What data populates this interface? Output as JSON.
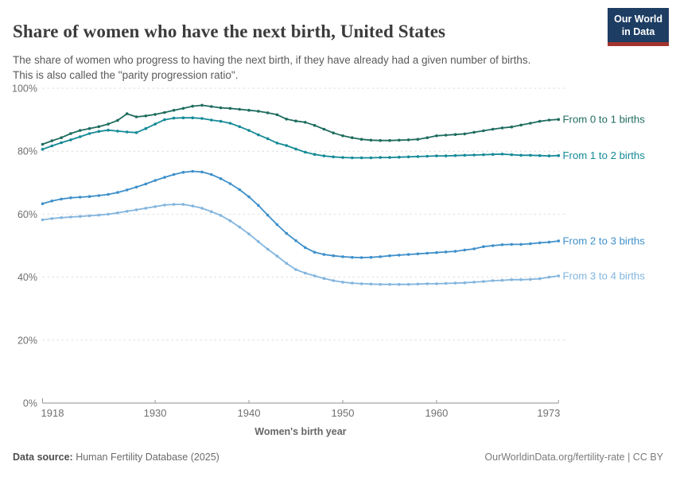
{
  "header": {
    "title": "Share of women who have the next birth, United States",
    "subtitle_lines": [
      "The share of women who progress to having the next birth, if they have already had a given number of births.",
      "This is also called the \"parity progression ratio\"."
    ]
  },
  "logo": {
    "line1": "Our World",
    "line2": "in Data",
    "bg_color": "#1d3d63",
    "bar_color": "#a3332e"
  },
  "chart_data": {
    "type": "line",
    "title": "Share of women who have the next birth, United States",
    "xlabel": "Women's birth year",
    "ylabel": "",
    "grid": true,
    "legend_position": "right-end-labels",
    "xlim": [
      1918,
      1973
    ],
    "ylim": [
      0,
      100
    ],
    "x_ticks": [
      1918,
      1930,
      1940,
      1950,
      1960,
      1973
    ],
    "y_ticks": [
      0,
      20,
      40,
      60,
      80,
      100
    ],
    "y_tick_suffix": "%",
    "x": [
      1918,
      1919,
      1920,
      1921,
      1922,
      1923,
      1924,
      1925,
      1926,
      1927,
      1928,
      1929,
      1930,
      1931,
      1932,
      1933,
      1934,
      1935,
      1936,
      1937,
      1938,
      1939,
      1940,
      1941,
      1942,
      1943,
      1944,
      1945,
      1946,
      1947,
      1948,
      1949,
      1950,
      1951,
      1952,
      1953,
      1954,
      1955,
      1956,
      1957,
      1958,
      1959,
      1960,
      1961,
      1962,
      1963,
      1964,
      1965,
      1966,
      1967,
      1968,
      1969,
      1970,
      1971,
      1972,
      1973
    ],
    "series": [
      {
        "name": "From 0 to 1 births",
        "color": "#1f6c5f",
        "values": [
          82.2,
          83.3,
          84.3,
          85.6,
          86.6,
          87.2,
          87.8,
          88.6,
          89.8,
          91.9,
          90.9,
          91.2,
          91.7,
          92.3,
          93.0,
          93.6,
          94.3,
          94.6,
          94.2,
          93.8,
          93.6,
          93.3,
          93.0,
          92.7,
          92.2,
          91.6,
          90.2,
          89.6,
          89.2,
          88.2,
          87.0,
          85.8,
          84.9,
          84.3,
          83.8,
          83.5,
          83.4,
          83.4,
          83.5,
          83.6,
          83.8,
          84.3,
          84.9,
          85.1,
          85.3,
          85.5,
          86.0,
          86.5,
          87.0,
          87.4,
          87.7,
          88.3,
          88.9,
          89.5,
          89.9,
          90.1
        ]
      },
      {
        "name": "From 1 to 2 births",
        "color": "#148a96",
        "values": [
          80.6,
          81.7,
          82.7,
          83.6,
          84.6,
          85.6,
          86.3,
          86.7,
          86.4,
          86.1,
          85.9,
          87.2,
          88.6,
          90.0,
          90.5,
          90.6,
          90.6,
          90.4,
          89.9,
          89.5,
          88.9,
          87.8,
          86.6,
          85.2,
          84.0,
          82.6,
          81.8,
          80.7,
          79.7,
          79.0,
          78.5,
          78.2,
          78.0,
          77.9,
          77.9,
          77.9,
          78.0,
          78.0,
          78.1,
          78.2,
          78.3,
          78.4,
          78.5,
          78.5,
          78.6,
          78.7,
          78.8,
          78.9,
          79.0,
          79.1,
          78.9,
          78.7,
          78.7,
          78.6,
          78.5,
          78.6
        ]
      },
      {
        "name": "From 2 to 3 births",
        "color": "#3f90ca",
        "values": [
          63.3,
          64.2,
          64.8,
          65.2,
          65.4,
          65.6,
          65.9,
          66.3,
          66.9,
          67.7,
          68.6,
          69.6,
          70.7,
          71.7,
          72.6,
          73.3,
          73.6,
          73.4,
          72.6,
          71.3,
          69.7,
          67.8,
          65.5,
          62.8,
          59.7,
          56.7,
          53.9,
          51.6,
          49.4,
          47.9,
          47.2,
          46.8,
          46.5,
          46.3,
          46.2,
          46.3,
          46.5,
          46.8,
          47.0,
          47.2,
          47.4,
          47.6,
          47.8,
          48.0,
          48.2,
          48.6,
          49.0,
          49.7,
          50.0,
          50.3,
          50.4,
          50.4,
          50.6,
          50.9,
          51.1,
          51.5
        ]
      },
      {
        "name": "From 3 to 4 births",
        "color": "#82b5de",
        "values": [
          58.2,
          58.6,
          58.9,
          59.1,
          59.3,
          59.5,
          59.7,
          60.0,
          60.4,
          60.9,
          61.4,
          61.9,
          62.4,
          62.9,
          63.1,
          63.1,
          62.6,
          61.9,
          60.8,
          59.6,
          57.9,
          55.9,
          53.7,
          51.3,
          48.9,
          46.7,
          44.4,
          42.4,
          41.3,
          40.4,
          39.6,
          38.9,
          38.4,
          38.1,
          37.9,
          37.8,
          37.7,
          37.7,
          37.7,
          37.7,
          37.8,
          37.9,
          37.9,
          38.0,
          38.1,
          38.2,
          38.4,
          38.6,
          38.9,
          39.0,
          39.2,
          39.2,
          39.3,
          39.5,
          40.0,
          40.4
        ]
      }
    ]
  },
  "footer": {
    "source_label": "Data source:",
    "source_value": " Human Fertility Database (2025)",
    "right": "OurWorldinData.org/fertility-rate | CC BY"
  }
}
